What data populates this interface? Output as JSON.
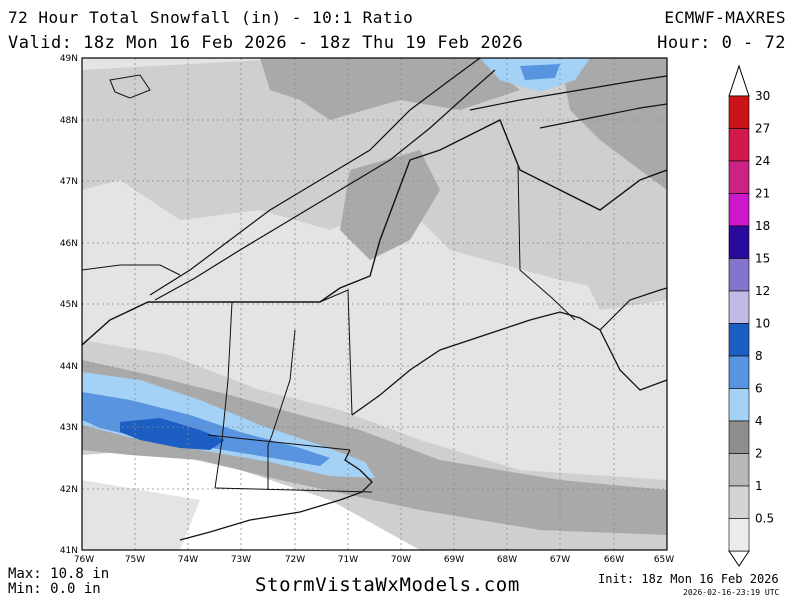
{
  "header": {
    "title": "72 Hour Total Snowfall (in) - 10:1 Ratio",
    "valid": "Valid: 18z Mon 16 Feb 2026 - 18z Thu 19 Feb 2026",
    "model": "ECMWF-MAXRES",
    "hour": "Hour: 0 - 72"
  },
  "axes": {
    "lat_labels": [
      "49N",
      "48N",
      "47N",
      "46N",
      "45N",
      "44N",
      "43N",
      "42N",
      "41N"
    ],
    "lon_labels": [
      "76W",
      "75W",
      "74W",
      "73W",
      "72W",
      "71W",
      "70W",
      "69W",
      "68W",
      "67W",
      "66W",
      "65W"
    ]
  },
  "colorbar": {
    "levels": [
      {
        "label": "30",
        "color": "#cc1418"
      },
      {
        "label": "27",
        "color": "#d01a4a"
      },
      {
        "label": "24",
        "color": "#cc2283"
      },
      {
        "label": "21",
        "color": "#cc18cc"
      },
      {
        "label": "18",
        "color": "#2a0a9c"
      },
      {
        "label": "15",
        "color": "#8474cc"
      },
      {
        "label": "12",
        "color": "#c1bae6"
      },
      {
        "label": "10",
        "color": "#1c5ec4"
      },
      {
        "label": "8",
        "color": "#5994e0"
      },
      {
        "label": "6",
        "color": "#a4d2f6"
      },
      {
        "label": "4",
        "color": "#8e8e8e"
      },
      {
        "label": "2",
        "color": "#b8b8b8"
      },
      {
        "label": "1",
        "color": "#d4d4d4"
      },
      {
        "label": "0.5",
        "color": "#ececec"
      }
    ]
  },
  "footer": {
    "max": "Max: 10.8 in",
    "min": "Min: 0.0 in",
    "brand": "StormVistaWxModels.com",
    "init": "Init: 18z Mon 16 Feb 2026",
    "timestamp": "2026-02-16-23:19 UTC"
  }
}
